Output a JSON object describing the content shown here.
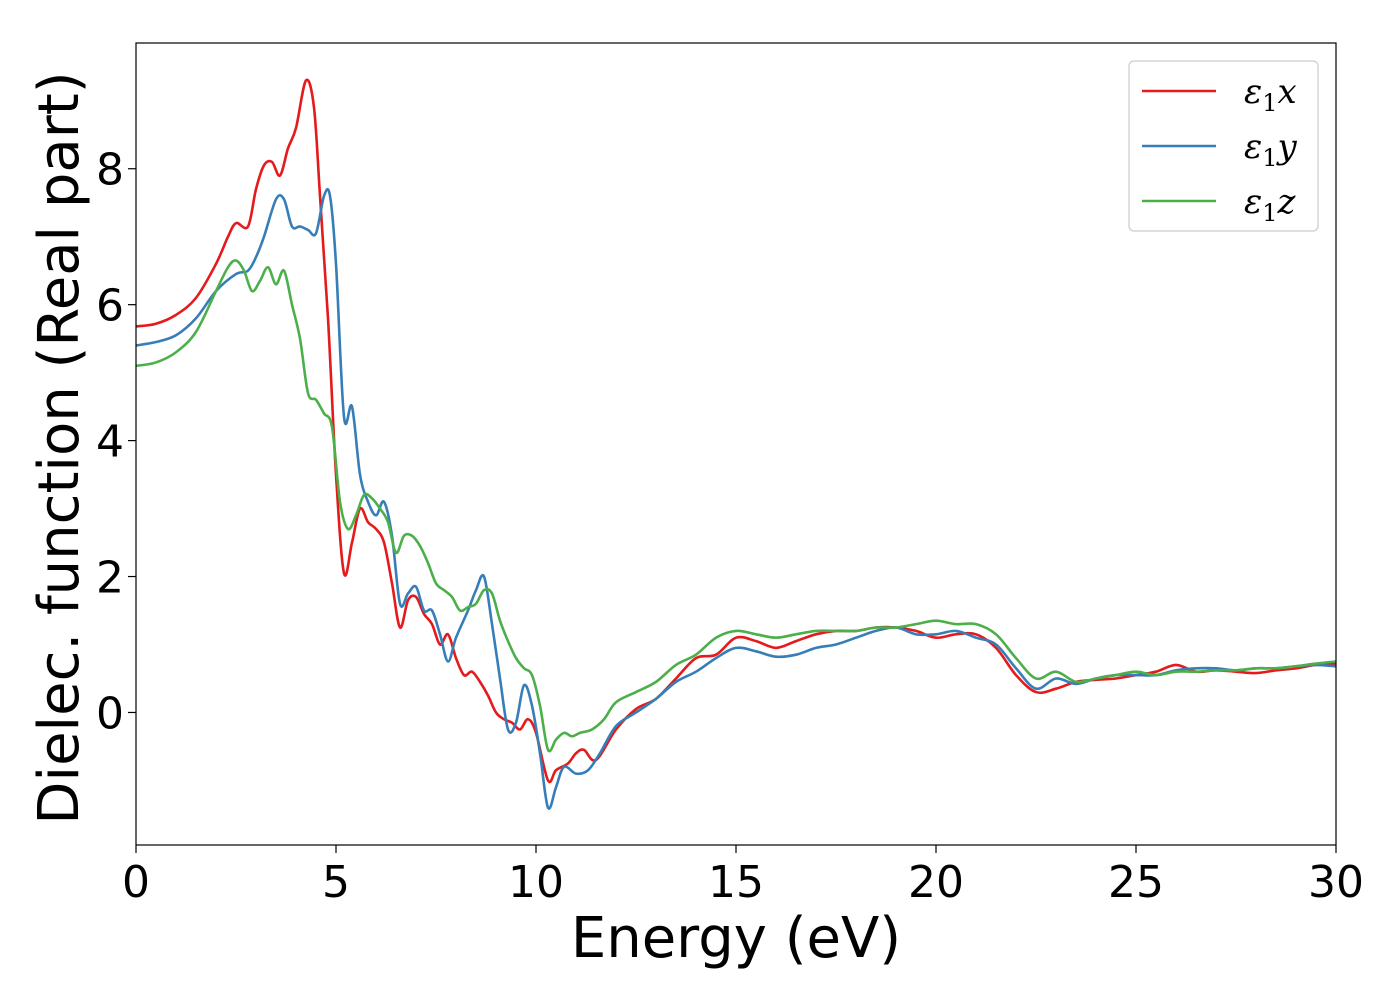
{
  "chart_data": {
    "type": "line",
    "xlabel": "Energy (eV)",
    "ylabel": "Dielec. function (Real part)",
    "xlim": [
      0,
      30
    ],
    "ylim": [
      -1.95,
      9.85
    ],
    "xticks": [
      0,
      5,
      10,
      15,
      20,
      25,
      30
    ],
    "yticks": [
      0,
      2,
      4,
      6,
      8
    ],
    "grid": false,
    "legend_position": "top-right",
    "series": [
      {
        "name": "ε1x",
        "name_base": "ε",
        "name_sub": "1",
        "name_var": "x",
        "color": "#e41a1c",
        "x": [
          0,
          0.5,
          1,
          1.5,
          2,
          2.3,
          2.5,
          2.8,
          3,
          3.2,
          3.4,
          3.6,
          3.8,
          4,
          4.25,
          4.45,
          4.6,
          4.8,
          5,
          5.2,
          5.4,
          5.6,
          5.8,
          6,
          6.2,
          6.4,
          6.6,
          6.8,
          7,
          7.2,
          7.4,
          7.6,
          7.8,
          8,
          8.2,
          8.4,
          8.6,
          8.8,
          9,
          9.2,
          9.4,
          9.6,
          9.8,
          10,
          10.3,
          10.5,
          10.8,
          11,
          11.2,
          11.5,
          12,
          12.5,
          13,
          13.5,
          14,
          14.5,
          15,
          15.5,
          16,
          16.5,
          17,
          17.5,
          18,
          18.5,
          19,
          19.5,
          20,
          20.5,
          21,
          21.5,
          22,
          22.5,
          23,
          23.5,
          24,
          24.5,
          25,
          25.5,
          26,
          26.5,
          27,
          27.5,
          28,
          28.5,
          29,
          29.5,
          30
        ],
        "y": [
          5.68,
          5.72,
          5.85,
          6.1,
          6.6,
          7.0,
          7.2,
          7.15,
          7.7,
          8.05,
          8.1,
          7.9,
          8.3,
          8.6,
          9.3,
          8.9,
          7.6,
          5.8,
          3.5,
          2.05,
          2.5,
          3.0,
          2.8,
          2.7,
          2.5,
          1.9,
          1.25,
          1.65,
          1.7,
          1.45,
          1.3,
          1.0,
          1.15,
          0.8,
          0.55,
          0.6,
          0.45,
          0.25,
          0.0,
          -0.1,
          -0.15,
          -0.25,
          -0.1,
          -0.3,
          -1.0,
          -0.85,
          -0.75,
          -0.6,
          -0.55,
          -0.7,
          -0.25,
          0.05,
          0.2,
          0.5,
          0.8,
          0.85,
          1.1,
          1.05,
          0.95,
          1.05,
          1.15,
          1.2,
          1.2,
          1.25,
          1.25,
          1.2,
          1.1,
          1.15,
          1.15,
          0.95,
          0.55,
          0.3,
          0.35,
          0.45,
          0.48,
          0.5,
          0.55,
          0.6,
          0.7,
          0.6,
          0.62,
          0.6,
          0.58,
          0.62,
          0.65,
          0.7,
          0.72
        ]
      },
      {
        "name": "ε1y",
        "name_base": "ε",
        "name_sub": "1",
        "name_var": "y",
        "color": "#377eb8",
        "x": [
          0,
          0.5,
          1,
          1.5,
          2,
          2.5,
          2.8,
          3,
          3.2,
          3.5,
          3.7,
          3.9,
          4.1,
          4.3,
          4.5,
          4.7,
          4.85,
          5,
          5.2,
          5.4,
          5.6,
          5.8,
          6,
          6.2,
          6.4,
          6.6,
          6.8,
          7,
          7.2,
          7.4,
          7.6,
          7.8,
          8,
          8.3,
          8.5,
          8.7,
          8.9,
          9.1,
          9.3,
          9.5,
          9.7,
          9.9,
          10.1,
          10.3,
          10.5,
          10.7,
          11,
          11.3,
          11.6,
          12,
          12.5,
          13,
          13.5,
          14,
          14.5,
          15,
          15.5,
          16,
          16.5,
          17,
          17.5,
          18,
          18.5,
          19,
          19.5,
          20,
          20.5,
          21,
          21.5,
          22,
          22.5,
          23,
          23.5,
          24,
          24.5,
          25,
          25.5,
          26,
          26.5,
          27,
          27.5,
          28,
          28.5,
          29,
          29.5,
          30
        ],
        "y": [
          5.4,
          5.45,
          5.55,
          5.8,
          6.2,
          6.45,
          6.5,
          6.7,
          7.0,
          7.55,
          7.55,
          7.15,
          7.15,
          7.1,
          7.05,
          7.6,
          7.6,
          6.6,
          4.35,
          4.5,
          3.5,
          3.1,
          2.9,
          3.1,
          2.6,
          1.6,
          1.75,
          1.85,
          1.5,
          1.5,
          1.15,
          0.75,
          1.1,
          1.5,
          1.8,
          2.0,
          1.3,
          0.5,
          -0.25,
          -0.15,
          0.4,
          0.1,
          -0.6,
          -1.4,
          -1.1,
          -0.8,
          -0.9,
          -0.85,
          -0.6,
          -0.2,
          0.0,
          0.2,
          0.45,
          0.6,
          0.8,
          0.95,
          0.9,
          0.82,
          0.85,
          0.95,
          1.0,
          1.1,
          1.2,
          1.25,
          1.15,
          1.15,
          1.2,
          1.1,
          1.0,
          0.65,
          0.35,
          0.5,
          0.42,
          0.5,
          0.55,
          0.55,
          0.55,
          0.62,
          0.65,
          0.65,
          0.62,
          0.65,
          0.65,
          0.68,
          0.7,
          0.68
        ]
      },
      {
        "name": "ε1z",
        "name_base": "ε",
        "name_sub": "1",
        "name_var": "z",
        "color": "#4daf4a",
        "x": [
          0,
          0.5,
          1,
          1.5,
          2,
          2.3,
          2.5,
          2.7,
          2.9,
          3.1,
          3.3,
          3.5,
          3.7,
          3.9,
          4.1,
          4.3,
          4.5,
          4.7,
          4.9,
          5.1,
          5.3,
          5.5,
          5.7,
          5.9,
          6.1,
          6.3,
          6.5,
          6.7,
          6.9,
          7.1,
          7.3,
          7.5,
          7.7,
          7.9,
          8.1,
          8.3,
          8.5,
          8.7,
          8.9,
          9.1,
          9.3,
          9.5,
          9.7,
          9.9,
          10.1,
          10.3,
          10.5,
          10.7,
          10.9,
          11.1,
          11.4,
          11.7,
          12,
          12.5,
          13,
          13.5,
          14,
          14.5,
          15,
          15.5,
          16,
          16.5,
          17,
          17.5,
          18,
          18.5,
          19,
          19.5,
          20,
          20.5,
          21,
          21.5,
          22,
          22.5,
          23,
          23.5,
          24,
          24.5,
          25,
          25.5,
          26,
          26.5,
          27,
          27.5,
          28,
          28.5,
          29,
          29.5,
          30
        ],
        "y": [
          5.1,
          5.15,
          5.3,
          5.6,
          6.2,
          6.55,
          6.65,
          6.5,
          6.2,
          6.35,
          6.55,
          6.3,
          6.5,
          6.0,
          5.5,
          4.7,
          4.6,
          4.4,
          4.2,
          3.1,
          2.7,
          2.9,
          3.2,
          3.15,
          3.0,
          2.8,
          2.35,
          2.6,
          2.6,
          2.45,
          2.2,
          1.9,
          1.8,
          1.7,
          1.5,
          1.55,
          1.6,
          1.8,
          1.75,
          1.35,
          1.05,
          0.8,
          0.65,
          0.55,
          0.1,
          -0.55,
          -0.4,
          -0.3,
          -0.35,
          -0.3,
          -0.25,
          -0.1,
          0.15,
          0.3,
          0.45,
          0.7,
          0.85,
          1.1,
          1.2,
          1.15,
          1.1,
          1.15,
          1.2,
          1.2,
          1.2,
          1.25,
          1.25,
          1.3,
          1.35,
          1.3,
          1.3,
          1.15,
          0.8,
          0.5,
          0.6,
          0.45,
          0.5,
          0.55,
          0.6,
          0.55,
          0.6,
          0.6,
          0.62,
          0.62,
          0.65,
          0.65,
          0.68,
          0.72,
          0.75
        ]
      }
    ]
  }
}
